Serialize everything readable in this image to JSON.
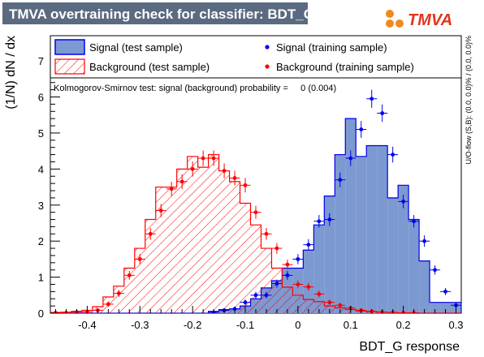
{
  "window_title": "TMVA overtraining check for classifier: BDT_G",
  "logo_text": "TMVA",
  "colors": {
    "title_bg": "#5a6a80",
    "signal_fill": "#7d99d1",
    "signal_line": "#0000ee",
    "background_line": "#ff0000",
    "signal_marker": "#0000ee",
    "background_marker": "#ff0000",
    "logo_orange": "#f08a1c",
    "logo_red": "#e2341d"
  },
  "chart_data": {
    "type": "bar",
    "title": "TMVA overtraining check for classifier: BDT_G",
    "xlabel": "BDT_G response",
    "ylabel": "(1/N) dN / dx",
    "xlim": [
      -0.47,
      0.31
    ],
    "ylim": [
      0,
      7.7
    ],
    "x_ticks": [
      -0.4,
      -0.3,
      -0.2,
      -0.1,
      0,
      0.1,
      0.2,
      0.3
    ],
    "x_tick_labels": [
      "-0.4",
      "-0.3",
      "-0.2",
      "-0.1",
      "0",
      "0.1",
      "0.2",
      "0.3"
    ],
    "y_ticks": [
      0,
      1,
      2,
      3,
      4,
      5,
      6,
      7
    ],
    "y_tick_labels": [
      "0",
      "1",
      "2",
      "3",
      "4",
      "5",
      "6",
      "7"
    ],
    "bin_edges": [
      -0.47,
      -0.45,
      -0.43,
      -0.41,
      -0.39,
      -0.37,
      -0.35,
      -0.33,
      -0.31,
      -0.29,
      -0.27,
      -0.25,
      -0.23,
      -0.21,
      -0.19,
      -0.17,
      -0.15,
      -0.13,
      -0.11,
      -0.09,
      -0.07,
      -0.05,
      -0.03,
      -0.01,
      0.01,
      0.03,
      0.05,
      0.07,
      0.09,
      0.11,
      0.13,
      0.15,
      0.17,
      0.19,
      0.21,
      0.23,
      0.25,
      0.27,
      0.29,
      0.31
    ],
    "legend": {
      "placement": "top",
      "entries": [
        "Signal (test sample)",
        "Signal (training sample)",
        "Background (test sample)",
        "Background (training sample)"
      ]
    },
    "series": [
      {
        "name": "Signal (test sample)",
        "style": "filled-histogram",
        "values": [
          0,
          0,
          0,
          0,
          0,
          0,
          0,
          0,
          0,
          0,
          0,
          0,
          0,
          0,
          0,
          0.05,
          0.1,
          0.12,
          0.2,
          0.4,
          0.7,
          0.9,
          1.25,
          1.25,
          1.75,
          2.45,
          3.25,
          4.4,
          5.4,
          4.35,
          4.65,
          4.65,
          3.2,
          3.55,
          2.6,
          1.45,
          0.3,
          0.3,
          0.3
        ]
      },
      {
        "name": "Background (test sample)",
        "style": "hatched-histogram",
        "values": [
          0.02,
          0.03,
          0.05,
          0.08,
          0.18,
          0.45,
          0.75,
          1.25,
          1.8,
          2.6,
          3.5,
          3.5,
          4.0,
          4.35,
          4.05,
          4.4,
          3.95,
          3.65,
          3.05,
          2.45,
          1.8,
          1.25,
          0.72,
          0.5,
          0.38,
          0.32,
          0.2,
          0.15,
          0.1,
          0.06,
          0.04,
          0.03,
          0.02,
          0.01,
          0.01,
          0,
          0,
          0,
          0
        ]
      },
      {
        "name": "Signal (training sample)",
        "style": "points",
        "values": [
          0,
          0,
          0,
          0,
          0,
          0,
          0,
          0,
          0,
          0,
          0,
          0,
          0,
          0,
          0,
          0.02,
          0.08,
          0.12,
          0.3,
          0.5,
          0.5,
          0.82,
          1.05,
          1.5,
          1.9,
          2.55,
          2.6,
          3.7,
          4.3,
          5.1,
          5.95,
          5.55,
          4.4,
          3.1,
          2.55,
          2.0,
          1.2,
          0.6,
          0.22
        ]
      },
      {
        "name": "Background (training sample)",
        "style": "points",
        "values": [
          0.01,
          0.01,
          0.03,
          0.04,
          0.08,
          0.25,
          0.55,
          1.05,
          1.5,
          2.2,
          2.85,
          3.45,
          3.65,
          4.0,
          4.3,
          4.3,
          3.95,
          3.75,
          3.55,
          2.8,
          2.2,
          1.8,
          1.35,
          0.8,
          0.73,
          0.53,
          0.3,
          0.22,
          0.14,
          0.08,
          0.05,
          0.03,
          0.02,
          0.01,
          0.01,
          0,
          0,
          0,
          0
        ]
      }
    ],
    "annotation": "Kolmogorov-Smirnov test: signal (background) probability =     0 (0.004)",
    "side_text": "U/O-flow (S,B): (0.0, 0.0)% / (0.0, 0.0)%"
  }
}
